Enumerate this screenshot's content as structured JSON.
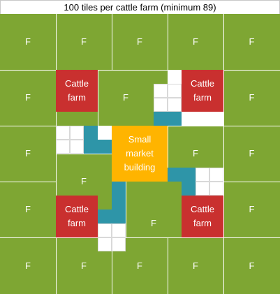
{
  "title": "100 tiles per cattle farm (minimum 89)",
  "colors": {
    "field": "#7ea633",
    "cattle_farm": "#c9302f",
    "market": "#ffb400",
    "road": "#2e95a8",
    "empty": "#ffffff"
  },
  "labels": {
    "field": "F",
    "cattle_farm": "Cattle farm",
    "market": "Small market building"
  }
}
